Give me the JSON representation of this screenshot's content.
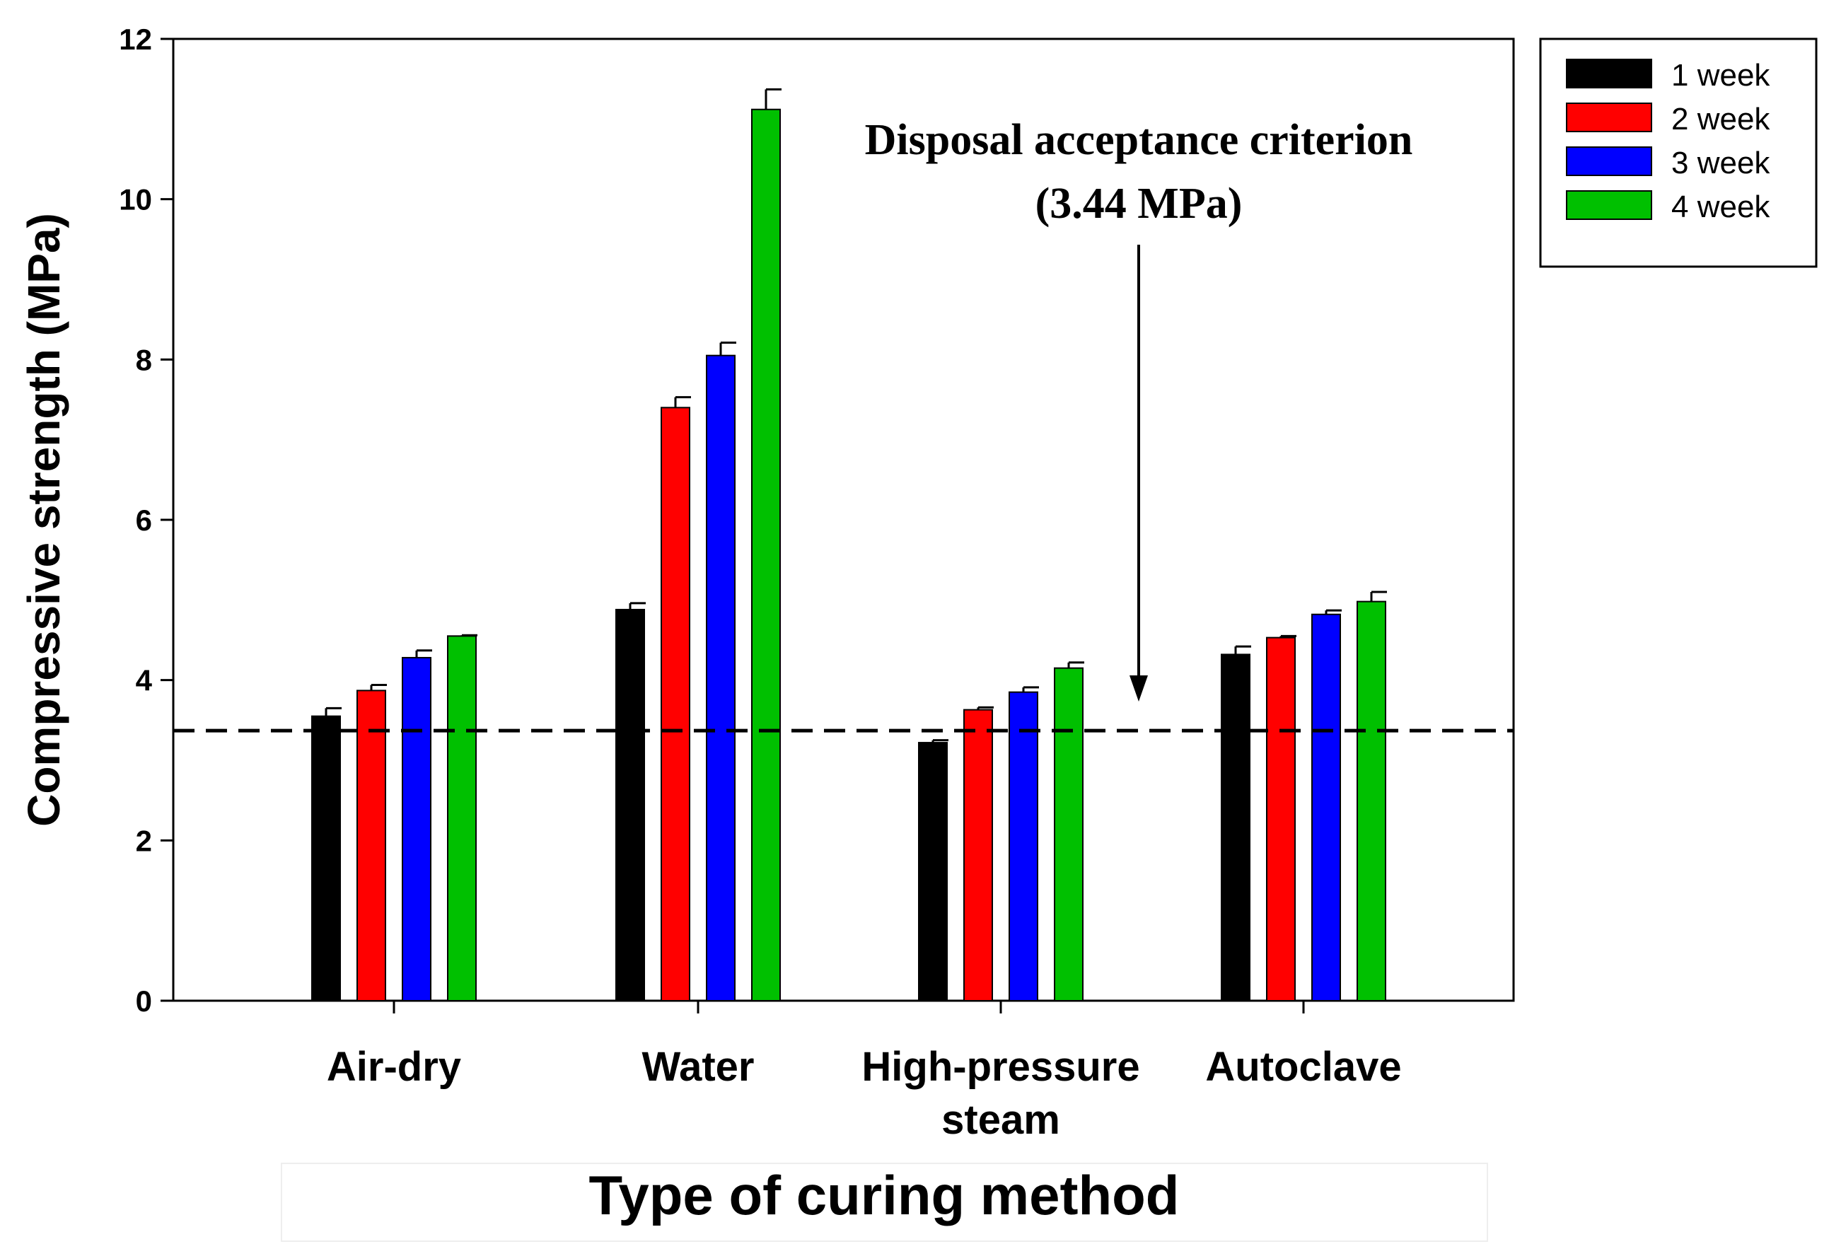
{
  "chart_data": {
    "type": "bar",
    "xlabel": "Type of curing method",
    "ylabel": "Compressive strength (MPa)",
    "ylim": [
      0,
      12
    ],
    "yticks": [
      0,
      2,
      4,
      6,
      8,
      10,
      12
    ],
    "categories": [
      [
        "Air-dry"
      ],
      [
        "Water"
      ],
      [
        "High-pressure",
        "steam"
      ],
      [
        "Autoclave"
      ]
    ],
    "series": [
      {
        "name": "1 week",
        "color": "#000000",
        "values": [
          3.55,
          4.88,
          3.22,
          4.32
        ],
        "errors": [
          0.1,
          0.08,
          0.03,
          0.1
        ]
      },
      {
        "name": "2 week",
        "color": "#ff0000",
        "values": [
          3.87,
          7.4,
          3.63,
          4.53
        ],
        "errors": [
          0.07,
          0.13,
          0.03,
          0.02
        ]
      },
      {
        "name": "3 week",
        "color": "#0000ff",
        "values": [
          4.28,
          8.05,
          3.85,
          4.82
        ],
        "errors": [
          0.09,
          0.16,
          0.06,
          0.05
        ]
      },
      {
        "name": "4 week",
        "color": "#00c000",
        "values": [
          4.55,
          11.12,
          4.15,
          4.98
        ],
        "errors": [
          0.01,
          0.25,
          0.07,
          0.12
        ]
      }
    ],
    "reference_line": {
      "value": 3.44,
      "style": "dashed",
      "color": "#000000"
    },
    "annotation": {
      "line1": "Disposal acceptance criterion",
      "line2": "(3.44 MPa)"
    },
    "legend_position": "outside-right-top",
    "grid": false
  }
}
